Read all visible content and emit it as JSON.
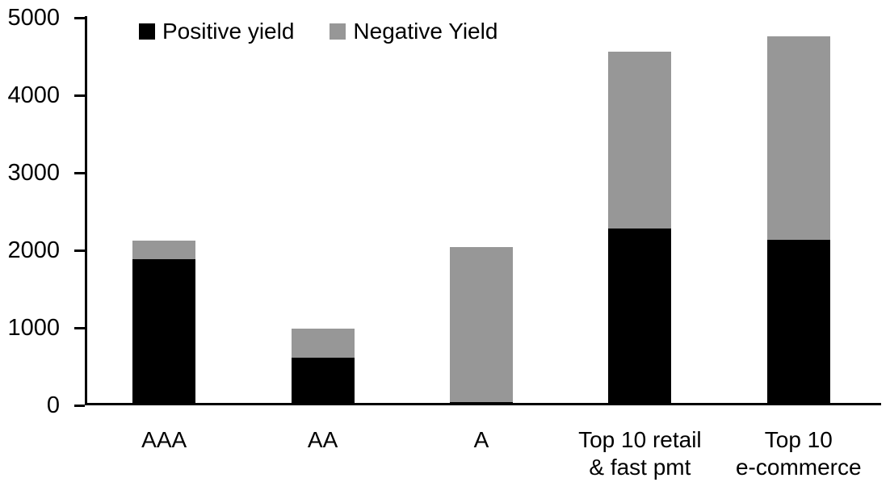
{
  "chart_data": {
    "type": "bar",
    "stacked": true,
    "categories": [
      "AAA",
      "AA",
      "A",
      "Top 10 retail\n& fast pmt",
      "Top 10\ne-commerce"
    ],
    "series": [
      {
        "name": "Positive yield",
        "color": "#000000",
        "values": [
          1890,
          610,
          40,
          2280,
          2140
        ]
      },
      {
        "name": "Negative Yield",
        "color": "#979797",
        "values": [
          230,
          380,
          2000,
          2280,
          2620
        ]
      }
    ],
    "totals": [
      2120,
      990,
      2040,
      4560,
      4760
    ],
    "ylim": [
      0,
      5000
    ],
    "yticks": [
      0,
      1000,
      2000,
      3000,
      4000,
      5000
    ],
    "grid": false,
    "legend_position": "top-inside",
    "colors": {
      "background": "#ffffff",
      "axis": "#000000",
      "text": "#000000"
    }
  }
}
